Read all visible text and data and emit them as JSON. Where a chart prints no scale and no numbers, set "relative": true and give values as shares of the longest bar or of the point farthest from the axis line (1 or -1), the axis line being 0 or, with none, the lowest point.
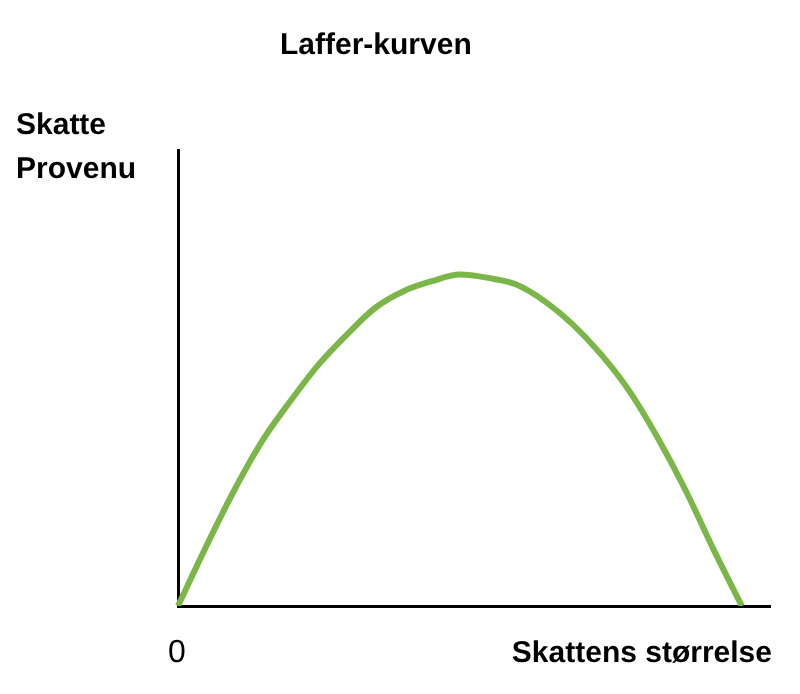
{
  "chart_data": {
    "type": "line",
    "title": "Laffer-kurven",
    "ylabel": "Skatte\nProvenu",
    "xlabel": "Skattens størrelse",
    "annotations": [
      "0"
    ],
    "relative": true,
    "grid": false,
    "legend": false,
    "marker": "none",
    "line_style": "solid",
    "categories": [
      null,
      null,
      null,
      null,
      null,
      null,
      null,
      null,
      null,
      null,
      null,
      null,
      null,
      null,
      null,
      null,
      null,
      null,
      null,
      null,
      null,
      null
    ],
    "series": [
      {
        "color": "#7ab648",
        "values": [
          0,
          0.18,
          0.35,
          0.5,
          0.62,
          0.73,
          0.82,
          0.9,
          0.95,
          0.98,
          1,
          0.99,
          0.97,
          0.92,
          0.85,
          0.76,
          0.65,
          0.51,
          0.35,
          0.17,
          0,
          null
        ]
      }
    ]
  }
}
